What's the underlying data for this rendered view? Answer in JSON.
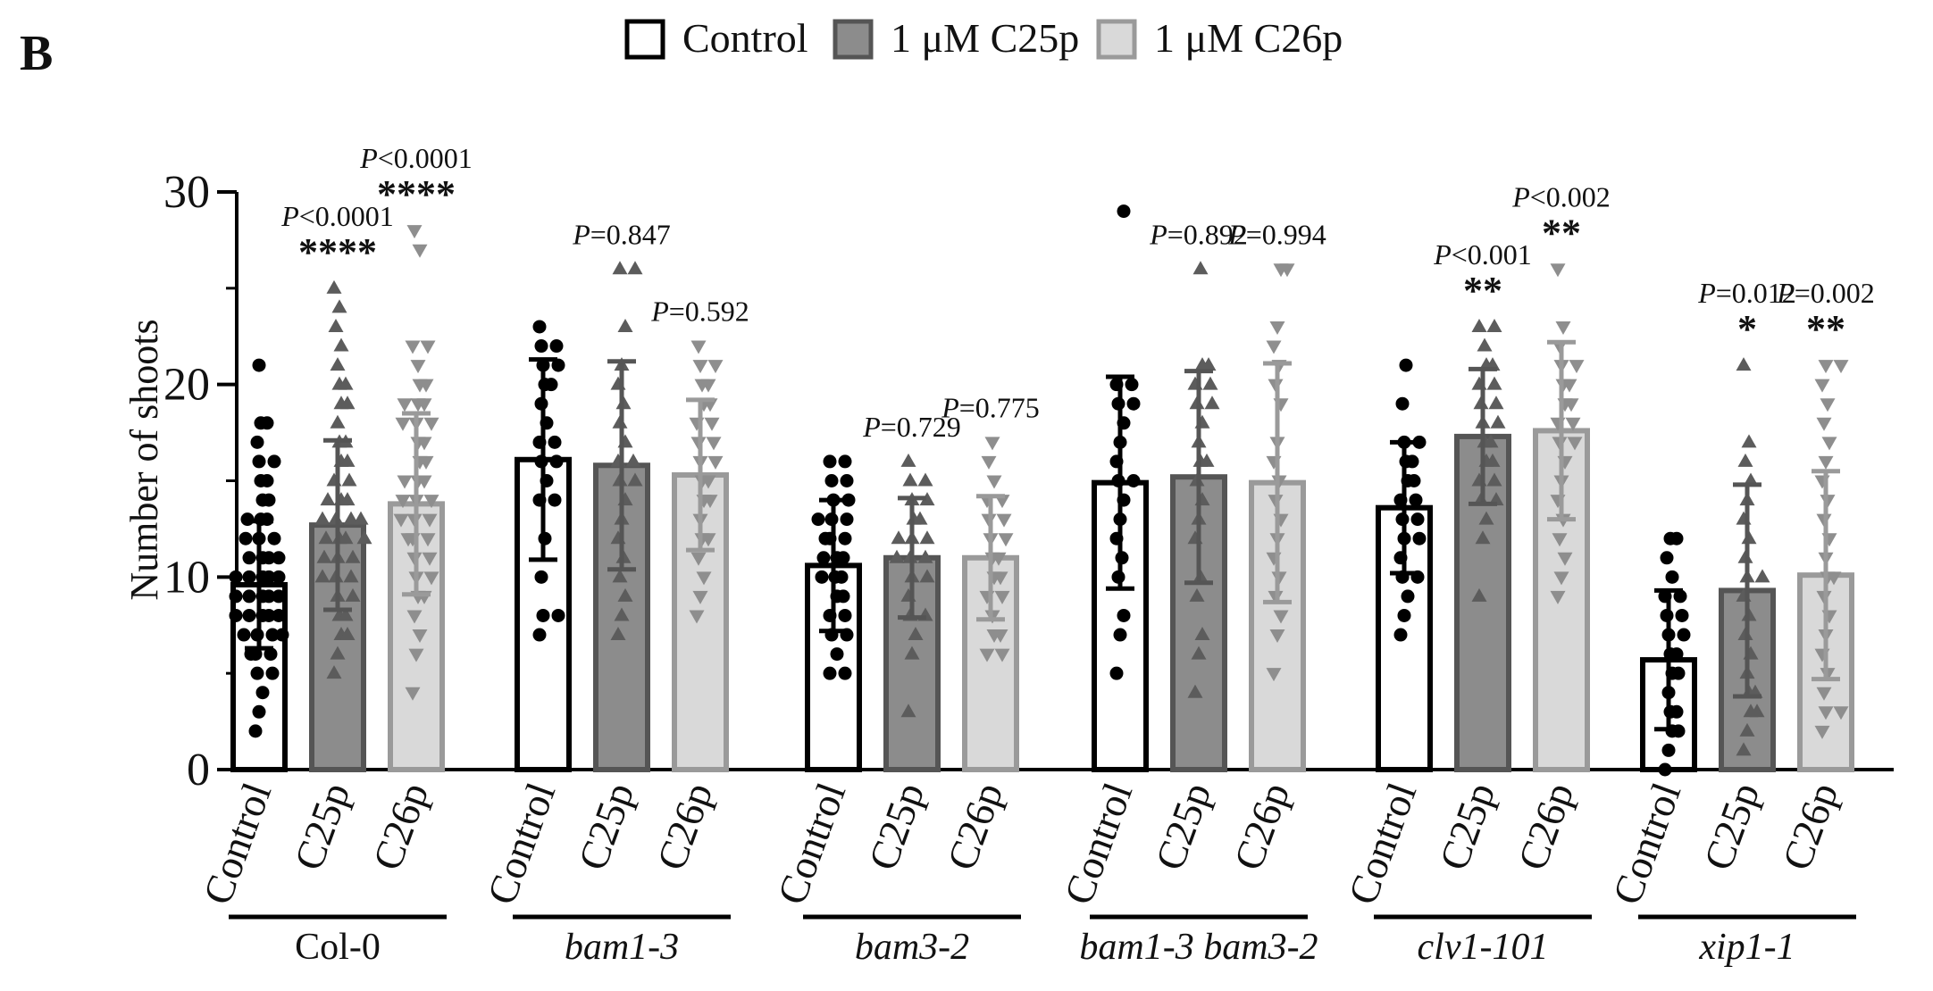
{
  "panel_label": "B",
  "colors": {
    "control": "#ffffff",
    "c25p": "#8c8c8c",
    "c26p": "#d9d9d9",
    "edge_control": "#000000",
    "edge_c25p": "#555555",
    "edge_c26p": "#9a9a9a",
    "dot_control": "#000000",
    "dot_c25p": "#5c5c5c",
    "dot_c26p": "#8e8e8e"
  },
  "chart_data": {
    "type": "bar",
    "title": "",
    "xlabel": "",
    "ylabel": "Number of shoots",
    "ylim": [
      0,
      30
    ],
    "yticks": [
      "0",
      "10",
      "20",
      "30"
    ],
    "legend": [
      {
        "label": "Control",
        "series": "control"
      },
      {
        "label": "1 μM C25p",
        "series": "c25p"
      },
      {
        "label": "1 μM C26p",
        "series": "c26p"
      }
    ],
    "groups": [
      {
        "name": "Col-0",
        "italic": false,
        "bars": [
          {
            "series": "control",
            "label": "Control",
            "mean": 9.6,
            "sd": 3.3,
            "points": [
              2,
              3,
              4,
              5,
              5,
              6,
              6,
              6,
              7,
              7,
              7,
              7,
              8,
              8,
              8,
              8,
              8,
              9,
              9,
              9,
              9,
              9,
              10,
              10,
              10,
              10,
              10,
              11,
              11,
              11,
              11,
              12,
              12,
              12,
              13,
              13,
              13,
              14,
              14,
              15,
              15,
              16,
              16,
              17,
              18,
              18,
              21
            ],
            "p": "",
            "stars": ""
          },
          {
            "series": "c25p",
            "label": "C25p",
            "mean": 12.7,
            "sd": 4.4,
            "points": [
              5,
              6,
              7,
              7,
              8,
              8,
              9,
              9,
              10,
              10,
              10,
              11,
              11,
              11,
              12,
              12,
              12,
              12,
              13,
              13,
              13,
              13,
              14,
              14,
              14,
              15,
              15,
              16,
              16,
              17,
              17,
              18,
              19,
              19,
              20,
              20,
              21,
              22,
              23,
              24,
              25
            ],
            "p": "<0.0001",
            "stars": "****"
          },
          {
            "series": "c26p",
            "label": "C26p",
            "mean": 13.8,
            "sd": 4.7,
            "points": [
              4,
              6,
              7,
              8,
              9,
              9,
              10,
              10,
              11,
              11,
              12,
              12,
              12,
              13,
              13,
              13,
              14,
              14,
              14,
              15,
              15,
              15,
              16,
              16,
              17,
              17,
              18,
              18,
              18,
              19,
              19,
              19,
              20,
              20,
              21,
              22,
              22,
              27,
              28
            ],
            "p": "<0.0001",
            "stars": "****"
          }
        ]
      },
      {
        "name": "bam1-3",
        "italic": true,
        "bars": [
          {
            "series": "control",
            "label": "Control",
            "mean": 16.1,
            "sd": 5.2,
            "points": [
              7,
              8,
              8,
              10,
              12,
              14,
              14,
              15,
              16,
              16,
              17,
              17,
              18,
              19,
              20,
              20,
              21,
              21,
              22,
              22,
              23
            ],
            "p": "",
            "stars": ""
          },
          {
            "series": "c25p",
            "label": "C25p",
            "mean": 15.8,
            "sd": 5.4,
            "points": [
              7,
              8,
              9,
              10,
              11,
              12,
              13,
              14,
              15,
              15,
              16,
              16,
              17,
              18,
              19,
              20,
              21,
              23,
              26,
              26
            ],
            "p": "=0.847",
            "stars": ""
          },
          {
            "series": "c26p",
            "label": "C26p",
            "mean": 15.3,
            "sd": 3.9,
            "points": [
              8,
              9,
              10,
              11,
              12,
              12,
              13,
              14,
              14,
              15,
              15,
              16,
              16,
              17,
              17,
              18,
              18,
              19,
              19,
              20,
              20,
              21,
              21,
              22
            ],
            "p": "=0.592",
            "stars": ""
          }
        ]
      },
      {
        "name": "bam3-2",
        "italic": true,
        "bars": [
          {
            "series": "control",
            "label": "Control",
            "mean": 10.6,
            "sd": 3.4,
            "points": [
              5,
              5,
              6,
              7,
              7,
              8,
              8,
              9,
              9,
              10,
              10,
              10,
              11,
              11,
              11,
              12,
              12,
              12,
              13,
              13,
              13,
              14,
              14,
              15,
              15,
              16,
              16
            ],
            "p": "",
            "stars": ""
          },
          {
            "series": "c25p",
            "label": "C25p",
            "mean": 11.0,
            "sd": 3.1,
            "points": [
              3,
              6,
              7,
              8,
              8,
              9,
              10,
              10,
              11,
              11,
              11,
              12,
              12,
              12,
              13,
              13,
              14,
              14,
              15,
              15,
              16
            ],
            "p": "=0.729",
            "stars": ""
          },
          {
            "series": "c26p",
            "label": "C26p",
            "mean": 11.0,
            "sd": 3.2,
            "points": [
              6,
              6,
              7,
              7,
              8,
              9,
              9,
              10,
              10,
              11,
              11,
              12,
              12,
              13,
              13,
              14,
              14,
              15,
              16,
              17
            ],
            "p": "=0.775",
            "stars": ""
          }
        ]
      },
      {
        "name": "bam1-3 bam3-2",
        "italic": true,
        "bars": [
          {
            "series": "control",
            "label": "Control",
            "mean": 14.9,
            "sd": 5.5,
            "points": [
              5,
              7,
              8,
              10,
              11,
              12,
              13,
              14,
              15,
              15,
              16,
              17,
              18,
              19,
              19,
              20,
              20,
              29
            ],
            "p": "",
            "stars": ""
          },
          {
            "series": "c25p",
            "label": "C25p",
            "mean": 15.2,
            "sd": 5.5,
            "points": [
              4,
              6,
              7,
              9,
              10,
              12,
              13,
              14,
              15,
              16,
              16,
              17,
              18,
              19,
              19,
              20,
              20,
              21,
              21,
              26
            ],
            "p": "=0.892",
            "stars": ""
          },
          {
            "series": "c26p",
            "label": "C26p",
            "mean": 14.9,
            "sd": 6.2,
            "points": [
              5,
              7,
              8,
              9,
              10,
              11,
              12,
              13,
              14,
              15,
              16,
              17,
              19,
              20,
              21,
              22,
              23,
              26,
              26
            ],
            "p": "=0.994",
            "stars": ""
          }
        ]
      },
      {
        "name": "clv1-101",
        "italic": true,
        "bars": [
          {
            "series": "control",
            "label": "Control",
            "mean": 13.6,
            "sd": 3.4,
            "points": [
              7,
              8,
              9,
              10,
              10,
              11,
              12,
              12,
              13,
              13,
              14,
              14,
              15,
              15,
              16,
              16,
              17,
              17,
              19,
              21
            ],
            "p": "",
            "stars": ""
          },
          {
            "series": "c25p",
            "label": "C25p",
            "mean": 17.3,
            "sd": 3.5,
            "points": [
              9,
              12,
              13,
              14,
              14,
              15,
              15,
              16,
              16,
              17,
              17,
              18,
              18,
              19,
              19,
              20,
              20,
              21,
              21,
              22,
              23,
              23
            ],
            "p": "<0.001",
            "stars": "**"
          },
          {
            "series": "c26p",
            "label": "C26p",
            "mean": 17.6,
            "sd": 4.6,
            "points": [
              9,
              10,
              11,
              12,
              13,
              14,
              15,
              16,
              17,
              17,
              18,
              18,
              19,
              19,
              20,
              20,
              21,
              21,
              22,
              23,
              26
            ],
            "p": "<0.002",
            "stars": "**"
          }
        ]
      },
      {
        "name": "xip1-1",
        "italic": true,
        "bars": [
          {
            "series": "control",
            "label": "Control",
            "mean": 5.7,
            "sd": 3.6,
            "points": [
              0,
              1,
              2,
              2,
              3,
              3,
              4,
              5,
              5,
              6,
              6,
              7,
              7,
              8,
              8,
              9,
              9,
              10,
              11,
              12,
              12
            ],
            "p": "",
            "stars": ""
          },
          {
            "series": "c25p",
            "label": "C25p",
            "mean": 9.3,
            "sd": 5.5,
            "points": [
              1,
              2,
              3,
              3,
              4,
              4,
              5,
              6,
              7,
              8,
              9,
              10,
              10,
              11,
              12,
              13,
              14,
              15,
              16,
              17,
              21
            ],
            "p": "=0.012",
            "stars": "*"
          },
          {
            "series": "c26p",
            "label": "C26p",
            "mean": 10.1,
            "sd": 5.4,
            "points": [
              2,
              3,
              3,
              4,
              5,
              6,
              7,
              8,
              9,
              10,
              10,
              11,
              12,
              13,
              14,
              15,
              16,
              17,
              18,
              19,
              20,
              21,
              21
            ],
            "p": "=0.002",
            "stars": "**"
          }
        ]
      }
    ]
  }
}
